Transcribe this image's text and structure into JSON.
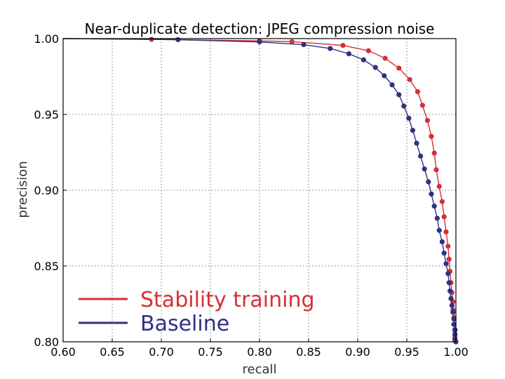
{
  "chart_data": {
    "type": "line",
    "title": "Near-duplicate detection: JPEG compression noise",
    "xlabel": "recall",
    "ylabel": "precision",
    "xlim": [
      0.6,
      1.0
    ],
    "ylim": [
      0.8,
      1.0
    ],
    "xticks": [
      "0.60",
      "0.65",
      "0.70",
      "0.75",
      "0.80",
      "0.85",
      "0.90",
      "0.95",
      "1.00"
    ],
    "yticks": [
      "0.80",
      "0.85",
      "0.90",
      "0.95",
      "1.00"
    ],
    "grid": true,
    "legend_position": "lower-left",
    "series": [
      {
        "name": "Stability training",
        "color": "#d62f34",
        "x": [
          0.6,
          0.69,
          0.8,
          0.833,
          0.885,
          0.911,
          0.928,
          0.942,
          0.953,
          0.961,
          0.966,
          0.971,
          0.975,
          0.978,
          0.98,
          0.983,
          0.986,
          0.988,
          0.99,
          0.992,
          0.993,
          0.994,
          0.995,
          0.996,
          0.997,
          0.997,
          0.998,
          0.998,
          0.999,
          0.999,
          0.999,
          1.0
        ],
        "y": [
          1.0,
          0.9995,
          0.9985,
          0.998,
          0.9955,
          0.992,
          0.987,
          0.9805,
          0.973,
          0.965,
          0.956,
          0.946,
          0.9355,
          0.9245,
          0.9135,
          0.9025,
          0.8925,
          0.8825,
          0.8725,
          0.863,
          0.8545,
          0.8465,
          0.839,
          0.8325,
          0.8265,
          0.821,
          0.816,
          0.8115,
          0.8075,
          0.804,
          0.801,
          0.8
        ]
      },
      {
        "name": "Baseline",
        "color": "#2e3282",
        "x": [
          0.6,
          0.717,
          0.8,
          0.845,
          0.872,
          0.891,
          0.906,
          0.918,
          0.927,
          0.935,
          0.942,
          0.947,
          0.952,
          0.956,
          0.96,
          0.964,
          0.968,
          0.972,
          0.975,
          0.978,
          0.981,
          0.983,
          0.986,
          0.988,
          0.99,
          0.992,
          0.993,
          0.994,
          0.995,
          0.996,
          0.997,
          0.998,
          0.998,
          0.999,
          0.999,
          0.999,
          1.0
        ],
        "y": [
          1.0,
          0.9993,
          0.9978,
          0.996,
          0.9935,
          0.99,
          0.986,
          0.981,
          0.9755,
          0.9695,
          0.963,
          0.9555,
          0.9475,
          0.9395,
          0.931,
          0.9225,
          0.914,
          0.9055,
          0.8975,
          0.8895,
          0.8815,
          0.8735,
          0.866,
          0.8585,
          0.8515,
          0.845,
          0.839,
          0.8335,
          0.8285,
          0.824,
          0.8195,
          0.815,
          0.8115,
          0.808,
          0.805,
          0.802,
          0.8
        ]
      }
    ]
  }
}
